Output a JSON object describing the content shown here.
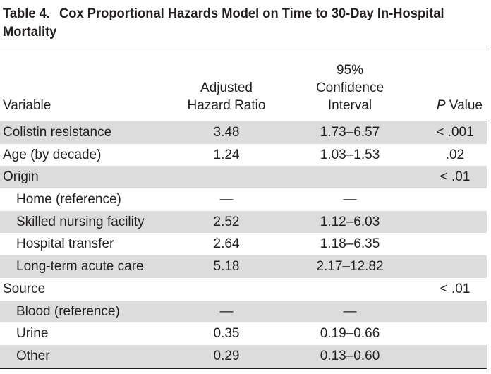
{
  "table": {
    "number": "Table 4.",
    "title_line1": "Cox Proportional Hazards Model on Time to 30-Day In-Hospital",
    "title_line2": "Mortality",
    "headers": {
      "variable": "Variable",
      "hr_line1": "Adjusted",
      "hr_line2": "Hazard Ratio",
      "ci_line1": "95%",
      "ci_line2": "Confidence",
      "ci_line3": "Interval",
      "p_italic": "P",
      "p_rest": " Value"
    },
    "rows": [
      {
        "variable": "Colistin resistance",
        "hr": "3.48",
        "ci": "1.73–6.57",
        "p": "< .001"
      },
      {
        "variable": "Age (by decade)",
        "hr": "1.24",
        "ci": "1.03–1.53",
        "p": ".02"
      },
      {
        "variable": "Origin",
        "hr": "",
        "ci": "",
        "p": "< .01"
      },
      {
        "variable": "Home (reference)",
        "hr": "—",
        "ci": "—",
        "p": ""
      },
      {
        "variable": "Skilled nursing facility",
        "hr": "2.52",
        "ci": "1.12–6.03",
        "p": ""
      },
      {
        "variable": "Hospital transfer",
        "hr": "2.64",
        "ci": "1.18–6.35",
        "p": ""
      },
      {
        "variable": "Long-term acute care",
        "hr": "5.18",
        "ci": "2.17–12.82",
        "p": ""
      },
      {
        "variable": "Source",
        "hr": "",
        "ci": "",
        "p": "< .01"
      },
      {
        "variable": "Blood (reference)",
        "hr": "—",
        "ci": "—",
        "p": ""
      },
      {
        "variable": "Urine",
        "hr": "0.35",
        "ci": "0.19–0.66",
        "p": ""
      },
      {
        "variable": "Other",
        "hr": "0.29",
        "ci": "0.13–0.60",
        "p": ""
      }
    ]
  },
  "colors": {
    "text": "#231f20",
    "row_shade": "#dcdcdd"
  }
}
